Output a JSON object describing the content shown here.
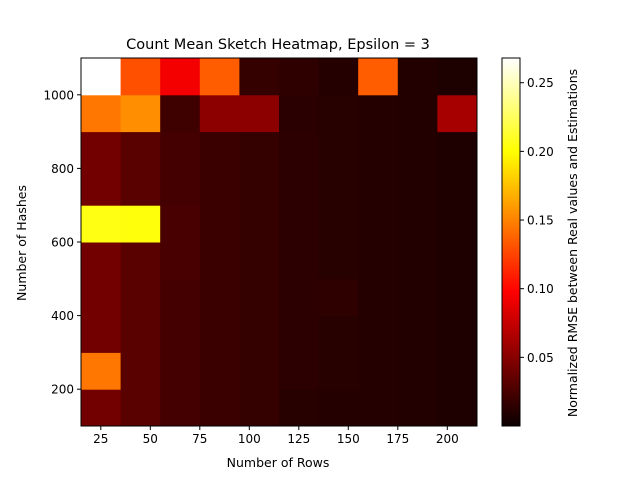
{
  "chart_data": {
    "type": "heatmap",
    "title": "Count Mean Sketch Heatmap, Epsilon = 3",
    "xlabel": "Number of Rows",
    "ylabel": "Number of Hashes",
    "colorbar_label": "Normalized RMSE between Real values and Estimations",
    "colormap": "hot",
    "vmin": 0.0,
    "vmax": 0.268,
    "x_cells": [
      25,
      45,
      65,
      85,
      105,
      125,
      145,
      165,
      185,
      205
    ],
    "y_cells": [
      150,
      250,
      350,
      450,
      550,
      650,
      750,
      850,
      950,
      1050
    ],
    "xlim": [
      15,
      215
    ],
    "ylim": [
      100,
      1100
    ],
    "xticks": [
      25,
      50,
      75,
      100,
      125,
      150,
      175,
      200
    ],
    "yticks": [
      200,
      400,
      600,
      800,
      1000
    ],
    "cbar_ticks": [
      0.05,
      0.1,
      0.15,
      0.2,
      0.25
    ],
    "cbar_tick_labels": [
      "0.05",
      "0.10",
      "0.15",
      "0.20",
      "0.25"
    ],
    "values": [
      [
        0.04,
        0.03,
        0.022,
        0.018,
        0.016,
        0.011,
        0.01,
        0.01,
        0.009,
        0.008
      ],
      [
        0.145,
        0.03,
        0.022,
        0.018,
        0.016,
        0.013,
        0.011,
        0.01,
        0.009,
        0.008
      ],
      [
        0.04,
        0.03,
        0.022,
        0.018,
        0.016,
        0.013,
        0.011,
        0.01,
        0.009,
        0.008
      ],
      [
        0.04,
        0.03,
        0.022,
        0.018,
        0.016,
        0.013,
        0.014,
        0.01,
        0.009,
        0.008
      ],
      [
        0.04,
        0.03,
        0.024,
        0.018,
        0.016,
        0.013,
        0.011,
        0.01,
        0.009,
        0.008
      ],
      [
        0.205,
        0.203,
        0.024,
        0.018,
        0.016,
        0.013,
        0.011,
        0.01,
        0.009,
        0.008
      ],
      [
        0.04,
        0.03,
        0.022,
        0.018,
        0.016,
        0.013,
        0.011,
        0.01,
        0.009,
        0.008
      ],
      [
        0.04,
        0.03,
        0.022,
        0.018,
        0.016,
        0.013,
        0.011,
        0.01,
        0.009,
        0.008
      ],
      [
        0.145,
        0.155,
        0.02,
        0.05,
        0.05,
        0.012,
        0.011,
        0.01,
        0.009,
        0.06
      ],
      [
        0.268,
        0.13,
        0.09,
        0.135,
        0.016,
        0.014,
        0.01,
        0.135,
        0.009,
        0.007
      ]
    ]
  }
}
